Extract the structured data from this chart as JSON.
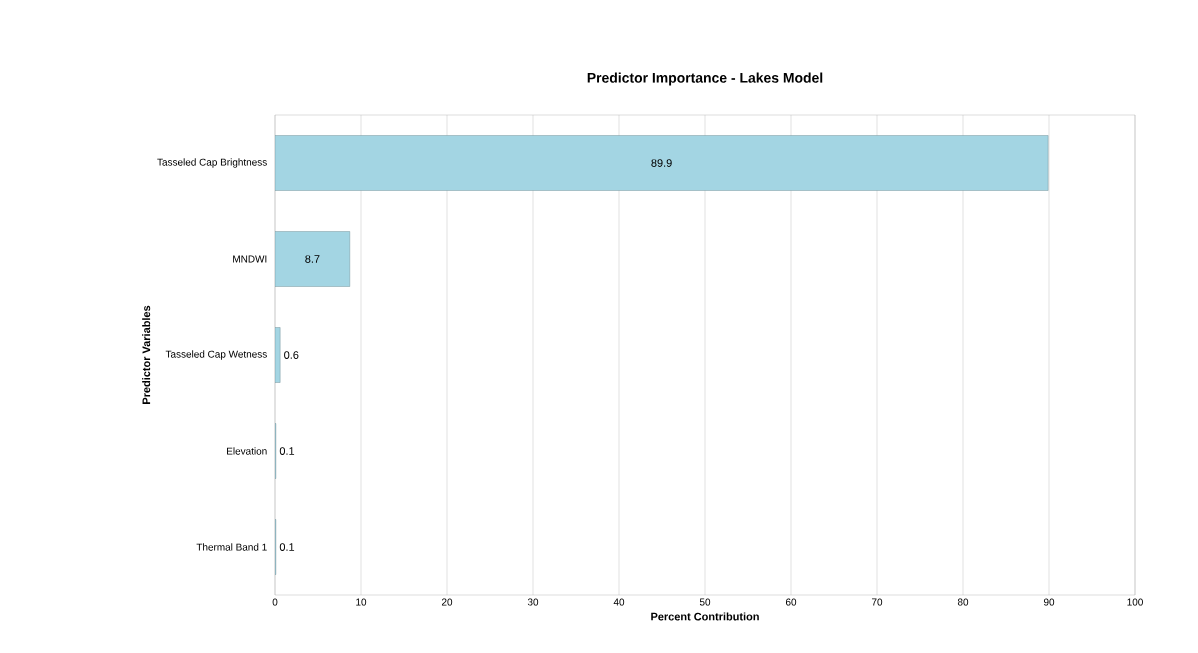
{
  "chart_data": {
    "type": "bar",
    "orientation": "horizontal",
    "title": "Predictor Importance - Lakes Model",
    "xlabel": "Percent Contribution",
    "ylabel": "Predictor Variables",
    "categories": [
      "Tasseled Cap Brightness",
      "MNDWI",
      "Tasseled Cap Wetness",
      "Elevation",
      "Thermal Band 1"
    ],
    "values": [
      89.9,
      8.7,
      0.6,
      0.1,
      0.1
    ],
    "color": "#a3d5e3",
    "xlim": [
      0,
      100
    ],
    "xticks": [
      0,
      10,
      20,
      30,
      40,
      50,
      60,
      70,
      80,
      90,
      100
    ],
    "grid": "x",
    "data_labels": true
  }
}
